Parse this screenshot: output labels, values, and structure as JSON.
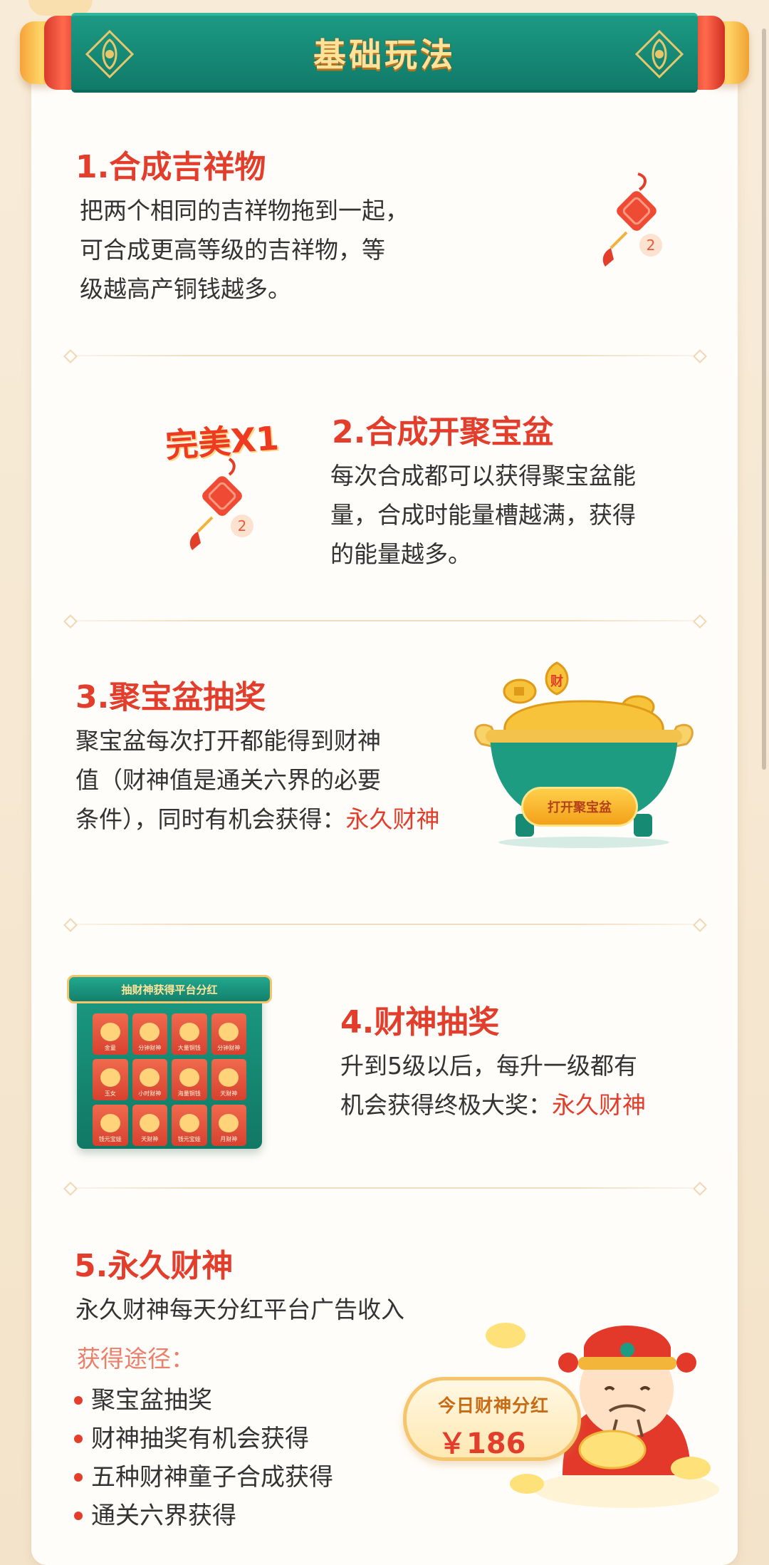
{
  "banner": {
    "title": "基础玩法"
  },
  "sections": {
    "s1": {
      "title": "1.合成吉祥物",
      "lines": [
        "把两个相同的吉祥物拖到一起，",
        "可合成更高等级的吉祥物，等",
        "级越高产铜钱越多。"
      ],
      "item_level": "2"
    },
    "s2": {
      "title": "2.合成开聚宝盆",
      "lines": [
        "每次合成都可以获得聚宝盆能",
        "量，合成时能量槽越满，获得",
        "的能量越多。"
      ],
      "badge": "完美X1",
      "item_level": "2"
    },
    "s3": {
      "title": "3.聚宝盆抽奖",
      "lines": [
        "聚宝盆每次打开都能得到财神",
        "值（财神值是通关六界的必要",
        "条件），同时有机会获得："
      ],
      "highlight": "永久财神",
      "pot_button": "打开聚宝盆",
      "coin_char": "财"
    },
    "s4": {
      "title": "4.财神抽奖",
      "lines": [
        "升到5级以后，每升一级都有",
        "机会获得终极大奖："
      ],
      "highlight": "永久财神",
      "grid_title": "抽财神获得平台分红",
      "grid_items": [
        "金童",
        "分钟财神",
        "大量铜钱",
        "分钟财神",
        "玉女",
        "小时财神",
        "海量铜钱",
        "天财神",
        "钱元宝娃",
        "天财神",
        "钱元宝娃",
        "月财神"
      ]
    },
    "s5": {
      "title": "5.永久财神",
      "desc": "永久财神每天分红平台广告收入",
      "sub_label": "获得途径：",
      "bullets": [
        "聚宝盆抽奖",
        "财神抽奖有机会获得",
        "五种财神童子合成获得",
        "通关六界获得"
      ],
      "card_label": "今日财神分红",
      "card_value": "￥186"
    }
  },
  "colors": {
    "title_red": "#e33d2c",
    "banner_green": "#1c9a84",
    "gold": "#ffe39a"
  }
}
